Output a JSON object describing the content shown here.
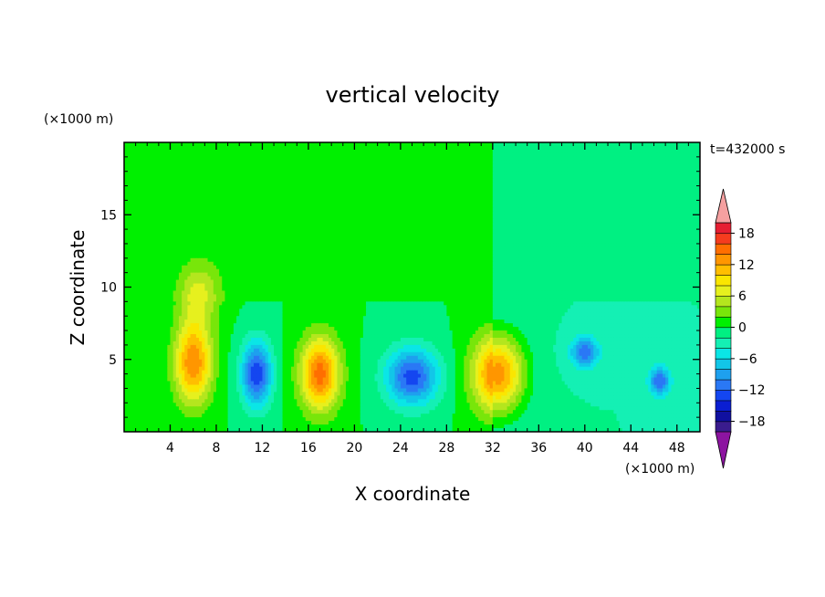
{
  "chart_data": {
    "type": "heatmap",
    "title": "vertical velocity",
    "xlabel": "X coordinate",
    "ylabel": "Z coordinate",
    "x_unit": "(×1000 m)",
    "y_unit": "(×1000 m)",
    "time_label": "t=432000 s",
    "xlim": [
      0,
      50
    ],
    "ylim": [
      0,
      20
    ],
    "x_ticks": [
      4,
      8,
      12,
      16,
      20,
      24,
      28,
      32,
      36,
      40,
      44,
      48
    ],
    "y_ticks": [
      5,
      10,
      15
    ],
    "colorbar": {
      "levels": [
        -20,
        -18,
        -16,
        -14,
        -12,
        -10,
        -8,
        -6,
        -4,
        -2,
        0,
        2,
        4,
        6,
        8,
        10,
        12,
        14,
        16,
        18,
        20
      ],
      "colors": [
        "#3a1c8e",
        "#1010a0",
        "#0a1ed2",
        "#1446f0",
        "#2a78f5",
        "#1ea0ee",
        "#12c6e8",
        "#0ae6e6",
        "#14f0b4",
        "#00f082",
        "#00f000",
        "#78e60a",
        "#b4e61e",
        "#e6f01e",
        "#fae600",
        "#ffbe00",
        "#ff9600",
        "#ff6e00",
        "#f53c1e",
        "#e61e32"
      ],
      "under_color": "#8c14a0",
      "over_color": "#f5a0a0",
      "tick_labels": [
        -18,
        -12,
        -6,
        0,
        6,
        12,
        18
      ]
    },
    "features": [
      {
        "x": 6.0,
        "z": 4.8,
        "value": 14,
        "sx": 1.6,
        "sz": 2.8
      },
      {
        "x": 6.5,
        "z": 9.5,
        "value": 6,
        "sx": 1.8,
        "sz": 2.2
      },
      {
        "x": 11.5,
        "z": 4.0,
        "value": -14,
        "sx": 1.3,
        "sz": 2.2
      },
      {
        "x": 17.0,
        "z": 4.0,
        "value": 15,
        "sx": 1.7,
        "sz": 2.5
      },
      {
        "x": 25.0,
        "z": 3.8,
        "value": -13,
        "sx": 2.3,
        "sz": 2.0
      },
      {
        "x": 32.5,
        "z": 4.0,
        "value": 15,
        "sx": 2.2,
        "sz": 2.6
      },
      {
        "x": 40.0,
        "z": 5.5,
        "value": -10,
        "sx": 1.2,
        "sz": 1.0
      },
      {
        "x": 46.5,
        "z": 3.5,
        "value": -10,
        "sx": 0.9,
        "sz": 1.0
      }
    ]
  }
}
